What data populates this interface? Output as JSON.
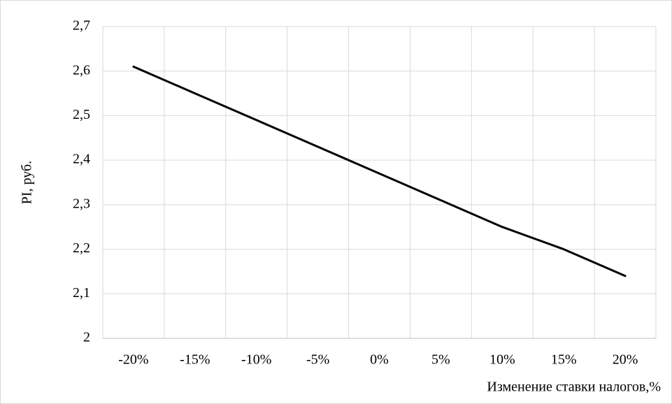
{
  "chart_data": {
    "type": "line",
    "categories": [
      "-20%",
      "-15%",
      "-10%",
      "-5%",
      "0%",
      "5%",
      "10%",
      "15%",
      "20%"
    ],
    "series": [
      {
        "name": "PI",
        "color": "#000000",
        "values": [
          2.61,
          2.55,
          2.49,
          2.43,
          2.37,
          2.31,
          2.25,
          2.2,
          2.14
        ]
      }
    ],
    "ylim": [
      2,
      2.7
    ],
    "yticks": [
      2,
      {
        "value": 2.1,
        "label": "2,1"
      },
      {
        "value": 2.2,
        "label": "2,2"
      },
      {
        "value": 2.3,
        "label": "2,3"
      },
      {
        "value": 2.4,
        "label": "2,4"
      },
      {
        "value": 2.5,
        "label": "2,5"
      },
      {
        "value": 2.6,
        "label": "2,6"
      },
      {
        "value": 2.7,
        "label": "2,7"
      }
    ],
    "y_axis_label": "PI, руб.",
    "x_axis_label": "Изменение ставки налогов,%",
    "grid": true
  }
}
